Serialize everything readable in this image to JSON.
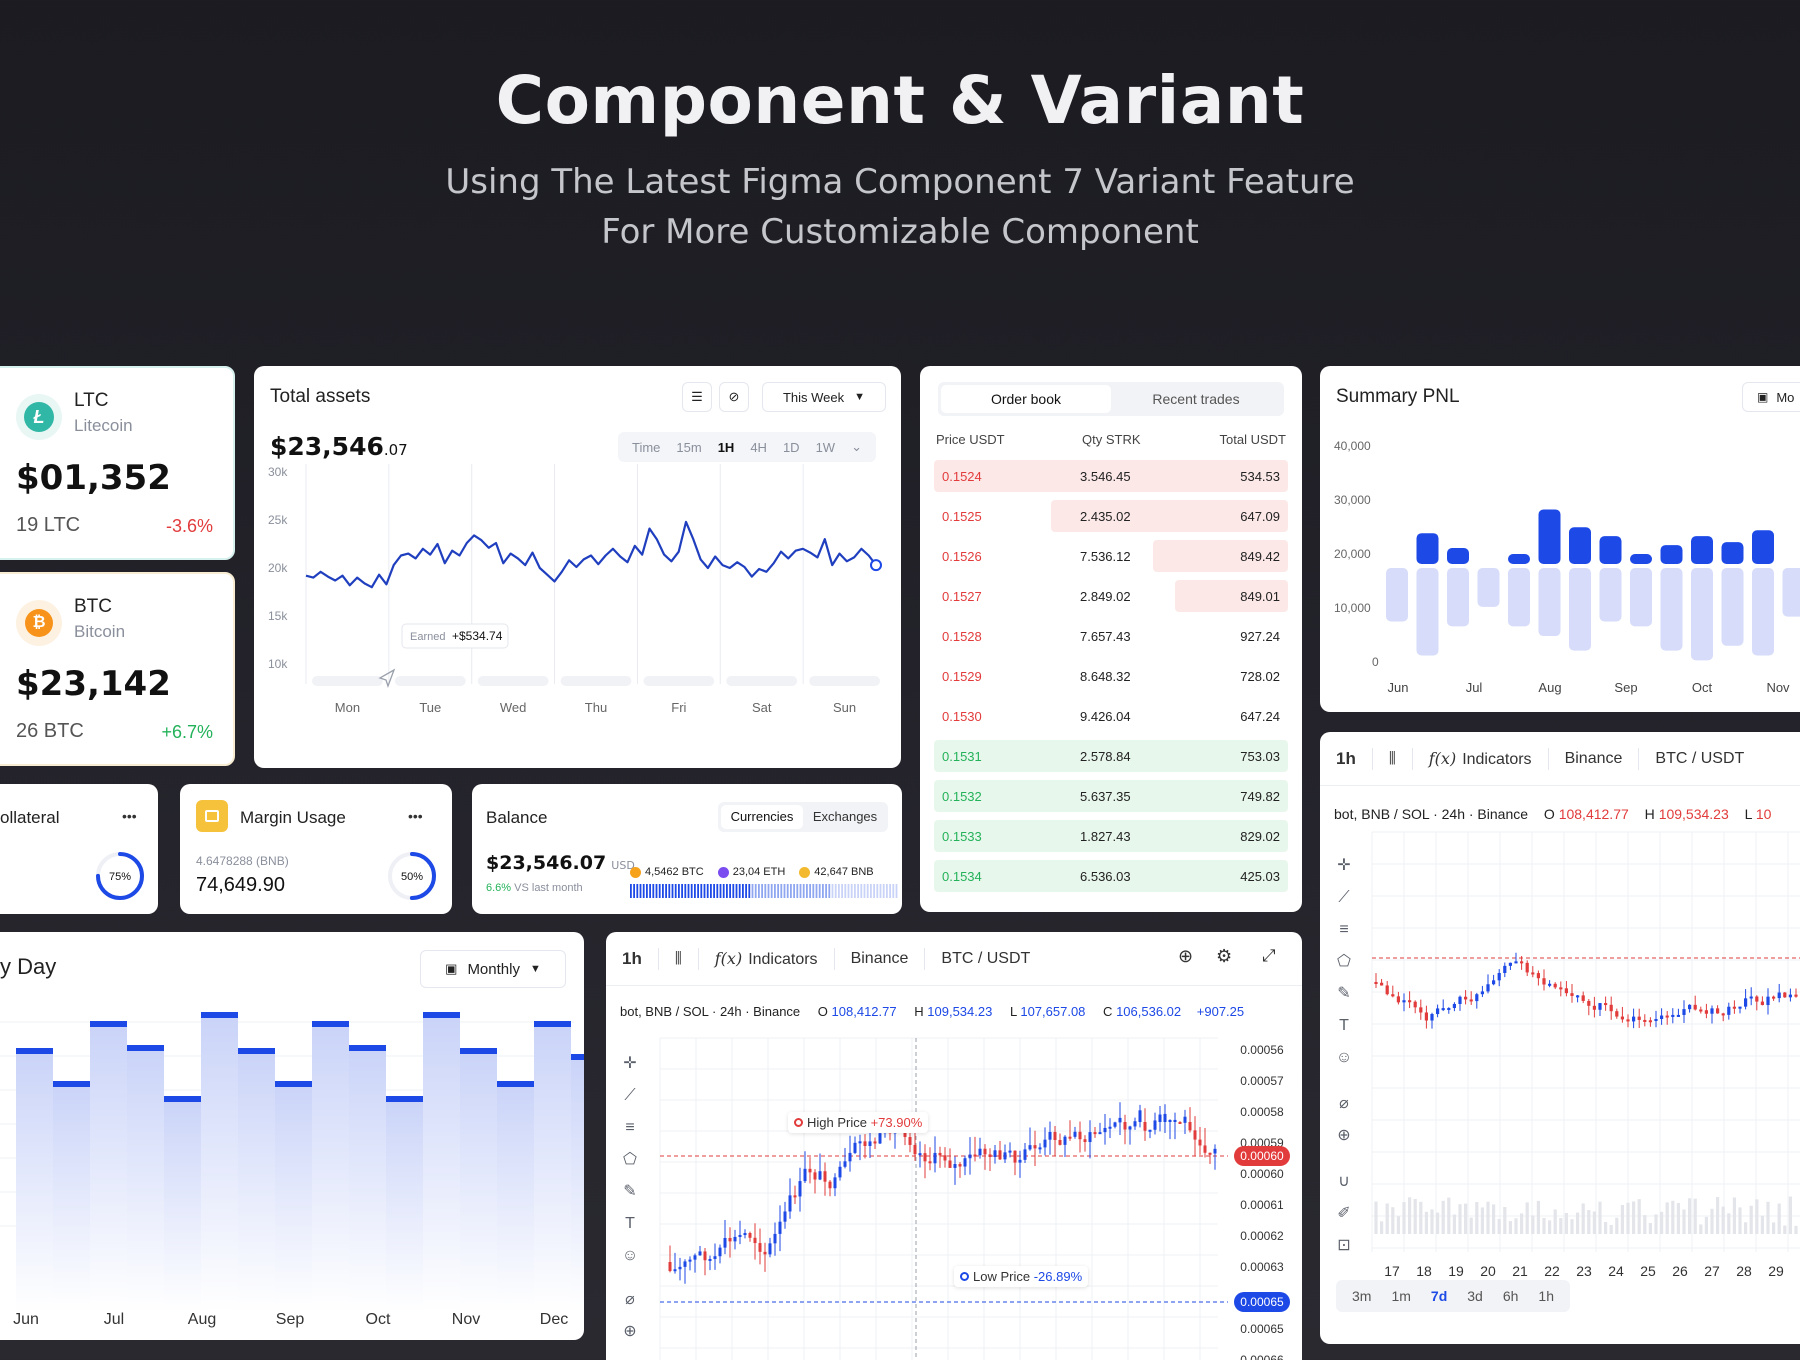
{
  "hero": {
    "title": "Component & Variant",
    "subtitle_line1": "Using The Latest Figma Component 7 Variant Feature",
    "subtitle_line2": "For More Customizable Component"
  },
  "ltc": {
    "symbol": "LTC",
    "name": "Litecoin",
    "value": "$01,352",
    "holding": "19 LTC",
    "change": "-3.6%"
  },
  "btc": {
    "symbol": "BTC",
    "name": "Bitcoin",
    "value": "$23,142",
    "holding": "26 BTC",
    "change": "+6.7%"
  },
  "total_assets": {
    "title": "Total assets",
    "range_label": "This Week",
    "value_main": "$23,546",
    "value_cents": ".07",
    "timeframes": [
      "Time",
      "15m",
      "1H",
      "4H",
      "1D",
      "1W"
    ],
    "active_timeframe": "1H",
    "tooltip_label": "Earned",
    "tooltip_value": "+$534.74",
    "y_ticks": [
      "30k",
      "25k",
      "20k",
      "15k",
      "10k"
    ],
    "x_ticks": [
      "Mon",
      "Tue",
      "Wed",
      "Thu",
      "Fri",
      "Sat",
      "Sun"
    ],
    "series": [
      19.2,
      19.0,
      19.6,
      19.1,
      18.7,
      19.2,
      18.2,
      19.0,
      18.4,
      18.0,
      19.3,
      18.3,
      20.3,
      21.3,
      21.5,
      21.0,
      22.0,
      21.4,
      22.5,
      20.5,
      21.8,
      21.3,
      22.6,
      23.4,
      22.9,
      22.1,
      22.6,
      20.5,
      21.5,
      21.0,
      20.3,
      21.6,
      20.0,
      19.3,
      18.6,
      19.6,
      20.8,
      20.1,
      20.9,
      21.3,
      20.4,
      21.3,
      22.0,
      21.2,
      20.6,
      22.3,
      21.4,
      24.1,
      23.0,
      21.4,
      20.7,
      21.7,
      24.8,
      23.0,
      20.9,
      20.0,
      21.2,
      20.3,
      20.0,
      20.6,
      20.1,
      19.1,
      19.9,
      19.6,
      20.5,
      21.7,
      21.0,
      21.8,
      22.0,
      21.6,
      21.1,
      23.0,
      20.3,
      21.5,
      20.7,
      21.1,
      22.0,
      21.3,
      20.3
    ],
    "y_min": 10,
    "y_max": 30
  },
  "order_book": {
    "tabs": [
      "Order book",
      "Recent trades"
    ],
    "columns": [
      "Price USDT",
      "Qty STRK",
      "Total USDT"
    ],
    "rows": [
      {
        "price": "0.1524",
        "qty": "3.546.45",
        "total": "534.53",
        "side": "sell",
        "depth": 1.0
      },
      {
        "price": "0.1525",
        "qty": "2.435.02",
        "total": "647.09",
        "side": "sell",
        "depth": 0.67
      },
      {
        "price": "0.1526",
        "qty": "7.536.12",
        "total": "849.42",
        "side": "sell",
        "depth": 0.38
      },
      {
        "price": "0.1527",
        "qty": "2.849.02",
        "total": "849.01",
        "side": "sell",
        "depth": 0.32
      },
      {
        "price": "0.1528",
        "qty": "7.657.43",
        "total": "927.24",
        "side": "none",
        "depth": 0
      },
      {
        "price": "0.1529",
        "qty": "8.648.32",
        "total": "728.02",
        "side": "none",
        "depth": 0
      },
      {
        "price": "0.1530",
        "qty": "9.426.04",
        "total": "647.24",
        "side": "none",
        "depth": 0
      },
      {
        "price": "0.1531",
        "qty": "2.578.84",
        "total": "753.03",
        "side": "buy",
        "depth": 1.0
      },
      {
        "price": "0.1532",
        "qty": "5.637.35",
        "total": "749.82",
        "side": "buy",
        "depth": 1.0
      },
      {
        "price": "0.1533",
        "qty": "1.827.43",
        "total": "829.02",
        "side": "buy",
        "depth": 1.0
      },
      {
        "price": "0.1534",
        "qty": "6.536.03",
        "total": "425.03",
        "side": "buy",
        "depth": 1.0
      }
    ]
  },
  "summary_pnl": {
    "title": "Summary PNL",
    "button_label": "Mo",
    "y_ticks": [
      "40,000",
      "30,000",
      "20,000",
      "10,000",
      "0"
    ],
    "x_ticks": [
      "Jun",
      "Jul",
      "Aug",
      "Sep",
      "Oct",
      "Nov"
    ],
    "series": [
      {
        "name": "profit",
        "values": [
          14000,
          27000,
          22000,
          13000,
          20000,
          35000,
          29000,
          26000,
          20000,
          23000,
          26000,
          24000,
          28000,
          14000
        ]
      },
      {
        "name": "loss",
        "values": [
          11000,
          18000,
          12000,
          8000,
          12000,
          14000,
          17000,
          11000,
          12000,
          17000,
          19000,
          16000,
          18000,
          10000
        ]
      }
    ]
  },
  "collateral": {
    "title": "ollateral",
    "menu": "•••",
    "percent": 75,
    "percent_label": "75%"
  },
  "margin": {
    "title": "Margin Usage",
    "menu": "•••",
    "sub": "4.6478288 (BNB)",
    "value": "74,649.90",
    "percent": 50,
    "percent_label": "50%"
  },
  "balance": {
    "title": "Balance",
    "tabs": [
      "Currencies",
      "Exchanges"
    ],
    "value": "$23,546.07",
    "currency": "USD",
    "delta": "6.6%",
    "delta_text": "VS last month",
    "legend": [
      {
        "label": "4,5462 BTC",
        "color": "#f7a21b"
      },
      {
        "label": "23,04 ETH",
        "color": "#7b4df0"
      },
      {
        "label": "42,647 BNB",
        "color": "#f3ba2f"
      }
    ],
    "split": [
      0.45,
      0.3,
      0.25
    ]
  },
  "day_chart": {
    "title": "y Day",
    "range_label": "Monthly",
    "x_ticks": [
      "Jun",
      "Jul",
      "Aug",
      "Sep",
      "Oct",
      "Nov",
      "Dec"
    ],
    "values": [
      0.88,
      0.77,
      0.97,
      0.89,
      0.72,
      1.0,
      0.88,
      0.77,
      0.97,
      0.89,
      0.72,
      1.0,
      0.88,
      0.77,
      0.97,
      0.86
    ]
  },
  "trading": {
    "interval": "1h",
    "indicators": "Indicators",
    "exchange": "Binance",
    "pair": "BTC / USDT",
    "info_main": "bot, BNB / SOL · 24h · Binance",
    "o_label": "O",
    "o_value": "108,412.77",
    "h_label": "H",
    "h_value": "109,534.23",
    "l_label": "L",
    "l_value": "107,657.08",
    "c_label": "C",
    "c_value": "106,536.02",
    "change": "+907.25",
    "high_label": "High Price",
    "high_value": "+73.90%",
    "low_label": "Low Price",
    "low_value": "-26.89%",
    "price_ticks": [
      "0.00056",
      "0.00057",
      "0.00058",
      "0.00059",
      "0.00060",
      "0.00061",
      "0.00062",
      "0.00063",
      "0.00064",
      "0.00065",
      "0.00066"
    ],
    "current_price": "0.00060",
    "low_price_tag": "0.00065"
  },
  "trading_right": {
    "interval": "1h",
    "indicators": "Indicators",
    "exchange": "Binance",
    "pair": "BTC / USDT",
    "info_main": "bot, BNB / SOL · 24h · Binance",
    "o_label": "O",
    "o_value": "108,412.77",
    "h_label": "H",
    "h_value": "109,534.23",
    "l_label": "L",
    "l_value": "10",
    "x_ticks": [
      "17",
      "18",
      "19",
      "20",
      "21",
      "22",
      "23",
      "24",
      "25",
      "26",
      "27",
      "28",
      "29"
    ],
    "ranges": [
      "3m",
      "1m",
      "7d",
      "3d",
      "6h",
      "1h"
    ],
    "active_range": "7d"
  },
  "colors": {
    "accent": "#1d49e6",
    "red": "#e23b3b",
    "green": "#23b25a",
    "candle_up": "#1d49e6",
    "candle_down": "#e23b3b"
  }
}
